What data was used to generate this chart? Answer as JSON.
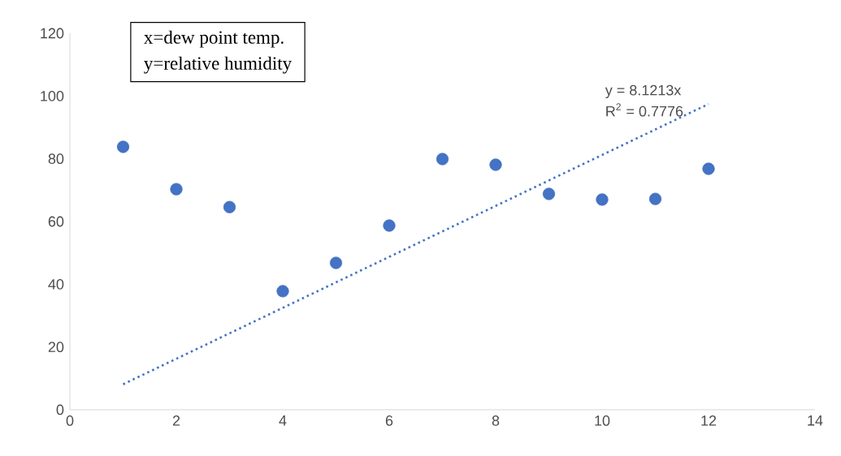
{
  "chart_data": {
    "type": "scatter",
    "x": [
      1,
      2,
      3,
      4,
      5,
      6,
      7,
      8,
      9,
      10,
      11,
      12
    ],
    "series": [
      {
        "color": "#4472c4",
        "values": [
          83.8,
          70.3,
          64.6,
          37.8,
          46.8,
          58.7,
          79.9,
          78.1,
          68.8,
          67.0,
          67.2,
          76.8
        ],
        "marker": "circle"
      },
      {
        "type": "line",
        "color": "#4472c4",
        "x": [
          1,
          12
        ],
        "values": [
          8.1213,
          97.4556
        ],
        "marker": "none",
        "line_style": "dotted"
      }
    ],
    "xlim": [
      0,
      14
    ],
    "xticks": [
      0,
      2,
      4,
      6,
      8,
      10,
      12,
      14
    ],
    "ylim": [
      0,
      120
    ],
    "yticks": [
      0,
      20,
      40,
      60,
      80,
      100,
      120
    ],
    "grid": false,
    "annotations": [
      "x=dew point temp.",
      "y=relative humidity",
      "y = 8.1213x",
      "R$^{2}$ = 0.7776"
    ]
  }
}
